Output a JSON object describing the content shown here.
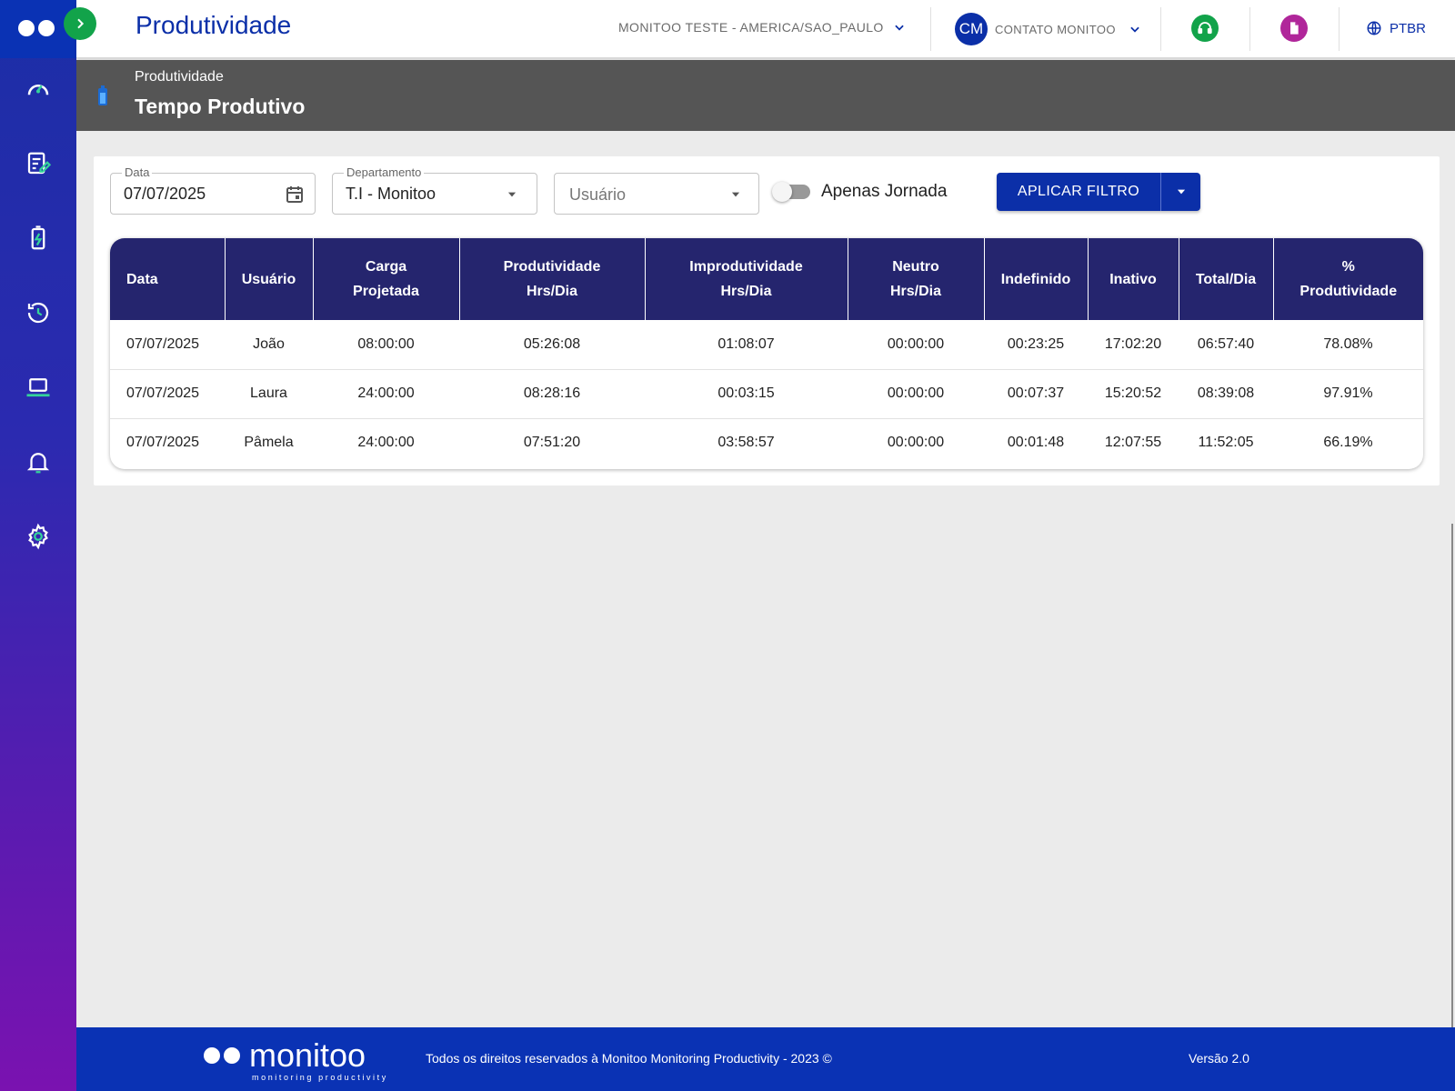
{
  "sidebar": {
    "items": [
      {
        "name": "dashboard-icon"
      },
      {
        "name": "edit-list-icon"
      },
      {
        "name": "battery-icon"
      },
      {
        "name": "history-icon"
      },
      {
        "name": "laptop-icon"
      },
      {
        "name": "bell-icon"
      },
      {
        "name": "gear-icon"
      }
    ]
  },
  "topbar": {
    "title": "Produtividade",
    "company": "MONITOO TESTE - AMERICA/SAO_PAULO",
    "user_initials": "CM",
    "user_name": "CONTATO MONITOO",
    "language": "PTBR",
    "support_color": "#12a34a",
    "doc_color": "#b0269a"
  },
  "page_header": {
    "breadcrumb": "Produtividade",
    "title": "Tempo Produtivo"
  },
  "filters": {
    "date_label": "Data",
    "date_value": "07/07/2025",
    "department_label": "Departamento",
    "department_value": "T.I - Monitoo",
    "user_placeholder": "Usuário",
    "toggle_label": "Apenas Jornada",
    "toggle_on": false,
    "apply_label": "APLICAR FILTRO"
  },
  "table": {
    "headers": [
      [
        "Data"
      ],
      [
        "Usuário"
      ],
      [
        "Carga",
        "Projetada"
      ],
      [
        "Produtividade",
        "Hrs/Dia"
      ],
      [
        "Improdutividade",
        "Hrs/Dia"
      ],
      [
        "Neutro",
        "Hrs/Dia"
      ],
      [
        "Indefinido"
      ],
      [
        "Inativo"
      ],
      [
        "Total/Dia"
      ],
      [
        "%",
        "Produtividade"
      ]
    ],
    "rows": [
      [
        "07/07/2025",
        "João",
        "08:00:00",
        "05:26:08",
        "01:08:07",
        "00:00:00",
        "00:23:25",
        "17:02:20",
        "06:57:40",
        "78.08%"
      ],
      [
        "07/07/2025",
        "Laura",
        "24:00:00",
        "08:28:16",
        "00:03:15",
        "00:00:00",
        "00:07:37",
        "15:20:52",
        "08:39:08",
        "97.91%"
      ],
      [
        "07/07/2025",
        "Pâmela",
        "24:00:00",
        "07:51:20",
        "03:58:57",
        "00:00:00",
        "00:01:48",
        "12:07:55",
        "11:52:05",
        "66.19%"
      ]
    ]
  },
  "footer": {
    "logo_text": "monitoo",
    "logo_tagline": "monitoring productivity",
    "copyright": "Todos os direitos reservados à Monitoo Monitoring Productivity - 2023 ©",
    "version": "Versão 2.0"
  }
}
